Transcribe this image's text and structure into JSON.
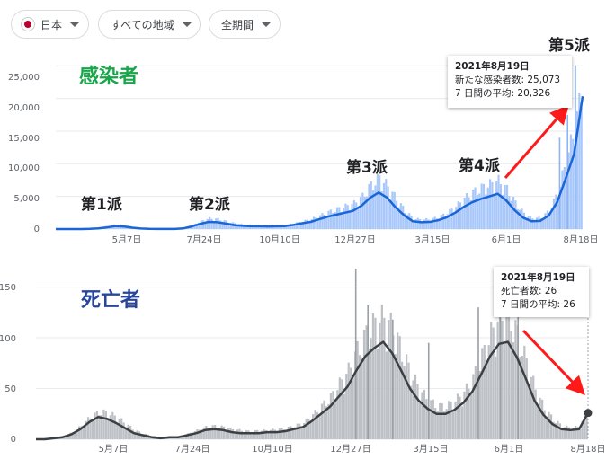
{
  "filters": {
    "country": "日本",
    "region": "すべての地域",
    "period": "全期間"
  },
  "colors": {
    "cases_bar": "#a8c7fa",
    "cases_line": "#1a66d6",
    "deaths_bar": "#bdc1c6",
    "deaths_line": "#3c4043",
    "arrow": "#ff1a1a",
    "cases_title": "#19a64a",
    "deaths_title": "#28469c"
  },
  "chart_data": [
    {
      "type": "bar",
      "title": "感染者",
      "x_ticks": [
        "5月7日",
        "7月24日",
        "10月10日",
        "12月27日",
        "3月15日",
        "6月1日",
        "8月18日"
      ],
      "y_ticks": [
        "0",
        "5,000",
        "10,000",
        "15,000",
        "20,000",
        "25,000"
      ],
      "ylim": [
        0,
        26000
      ],
      "grid": true,
      "series": [
        {
          "values": [
            0,
            0,
            0,
            10,
            50,
            200,
            450,
            650,
            550,
            350,
            150,
            50,
            30,
            20,
            30,
            150,
            550,
            1100,
            1500,
            1400,
            1100,
            800,
            650,
            550,
            550,
            500,
            520,
            600,
            800,
            1100,
            1400,
            1900,
            2400,
            2800,
            3200,
            3600,
            4600,
            6200,
            7200,
            6000,
            4200,
            2600,
            1500,
            1300,
            1400,
            1700,
            2300,
            3200,
            4300,
            5200,
            5800,
            6300,
            6800,
            5600,
            3700,
            2200,
            1500,
            1600,
            2600,
            5200,
            9600,
            14200,
            20326
          ]
        },
        {
          "values": [
            0,
            0,
            0,
            0,
            30,
            100,
            250,
            450,
            400,
            200,
            80,
            30,
            20,
            15,
            20,
            100,
            400,
            800,
            1100,
            1050,
            850,
            600,
            500,
            420,
            420,
            400,
            420,
            450,
            650,
            900,
            1100,
            1500,
            1900,
            2200,
            2500,
            2800,
            3600,
            4800,
            5600,
            4800,
            3300,
            2100,
            1200,
            1050,
            1100,
            1350,
            1800,
            2500,
            3400,
            4100,
            4600,
            5000,
            5400,
            4400,
            2900,
            1750,
            1200,
            1250,
            2050,
            4100,
            7700,
            11500,
            20326
          ]
        }
      ],
      "wave_labels": [
        "第1派",
        "第2派",
        "第3派",
        "第4派",
        "第5派"
      ],
      "tooltip": {
        "date": "2021年8月19日",
        "line1": "新たな感染者数: 25,073",
        "line2": "7 日間の平均: 20,326"
      }
    },
    {
      "type": "bar",
      "title": "死亡者",
      "x_ticks": [
        "5月7日",
        "7月24日",
        "10月10日",
        "12月27日",
        "3月15日",
        "6月1日",
        "8月18日"
      ],
      "y_ticks": [
        "0",
        "50",
        "100",
        "150"
      ],
      "ylim": [
        0,
        170
      ],
      "grid": true,
      "series": [
        {
          "values": [
            0,
            1,
            1,
            3,
            6,
            12,
            20,
            25,
            24,
            20,
            14,
            8,
            5,
            3,
            2,
            2,
            3,
            5,
            8,
            11,
            12,
            11,
            9,
            8,
            7,
            8,
            8,
            9,
            10,
            12,
            15,
            22,
            30,
            38,
            50,
            62,
            80,
            95,
            105,
            110,
            100,
            80,
            60,
            45,
            35,
            30,
            30,
            35,
            42,
            55,
            75,
            95,
            110,
            112,
            95,
            70,
            45,
            28,
            18,
            12,
            10,
            12,
            26
          ]
        },
        {
          "values": [
            0,
            0,
            1,
            2,
            5,
            10,
            17,
            22,
            20,
            16,
            11,
            6,
            4,
            2,
            1,
            2,
            2,
            4,
            6,
            9,
            10,
            9,
            7,
            6,
            6,
            6,
            7,
            7,
            8,
            10,
            12,
            18,
            25,
            32,
            42,
            52,
            68,
            82,
            90,
            96,
            85,
            68,
            50,
            38,
            30,
            25,
            25,
            29,
            36,
            47,
            64,
            82,
            94,
            96,
            81,
            60,
            38,
            24,
            15,
            10,
            9,
            10,
            26
          ]
        }
      ],
      "tooltip": {
        "date": "2021年8月19日",
        "line1": "死亡者数: 26",
        "line2": "7 日間の平均: 26"
      }
    }
  ]
}
